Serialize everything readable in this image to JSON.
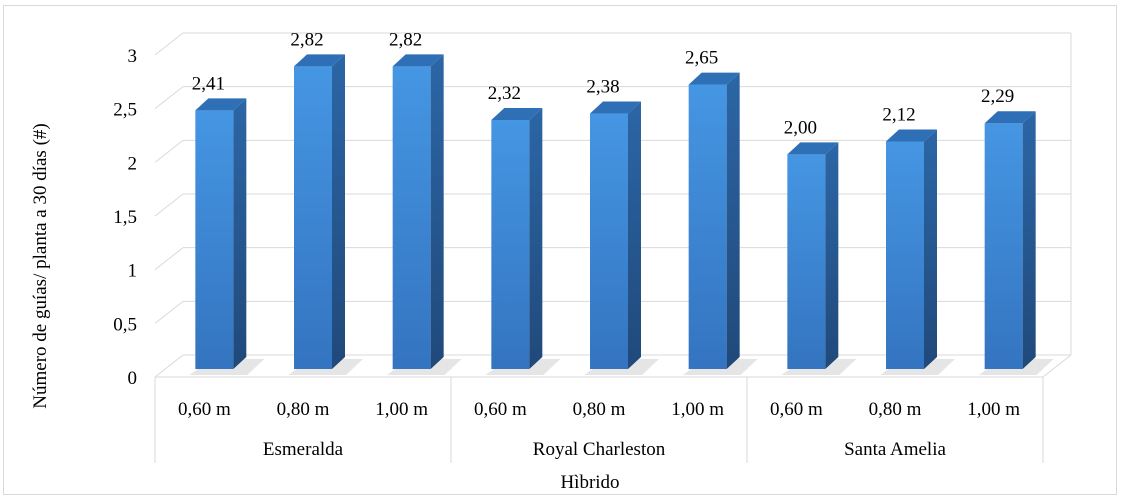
{
  "chart_data": {
    "type": "bar",
    "categories": [
      "0,60 m",
      "0,80 m",
      "1,00 m",
      "0,60 m",
      "0,80 m",
      "1,00 m",
      "0,60 m",
      "0,80 m",
      "1,00 m"
    ],
    "groups": [
      "Esmeralda",
      "Royal Charleston",
      "Santa Amelia"
    ],
    "values": [
      2.41,
      2.82,
      2.82,
      2.32,
      2.38,
      2.65,
      2.0,
      2.12,
      2.29
    ],
    "value_labels": [
      "2,41",
      "2,82",
      "2,82",
      "2,32",
      "2,38",
      "2,65",
      "2,00",
      "2,12",
      "2,29"
    ],
    "yticks": [
      "0",
      "0,5",
      "1",
      "1,5",
      "2",
      "2,5",
      "3"
    ],
    "ylim": [
      0,
      3
    ],
    "xlabel": "Hìbrido",
    "ylabel": "Número de guías/ planta a 30 días (#)",
    "grid": true,
    "style": "3d-column",
    "colors": {
      "bar_front": "#3f8bd9",
      "bar_side": "#2a5f99",
      "bar_top": "#2f6fb5",
      "grid": "#d9d9d9"
    }
  }
}
